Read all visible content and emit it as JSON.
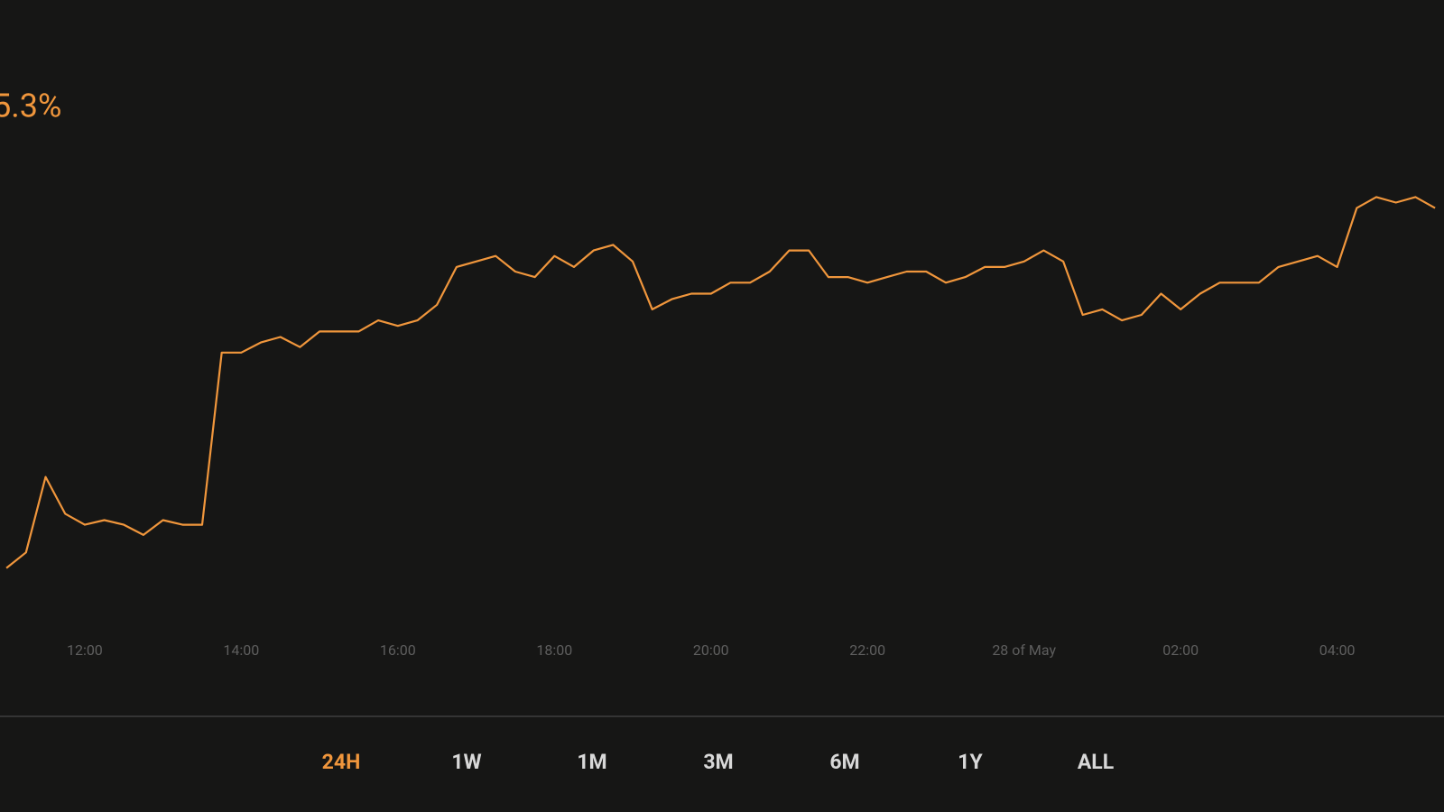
{
  "chart_data": {
    "type": "line",
    "annotation": "5.3%",
    "categories": [
      null,
      null,
      null,
      null,
      "12:00",
      null,
      null,
      null,
      null,
      null,
      null,
      null,
      "14:00",
      null,
      null,
      null,
      null,
      null,
      null,
      null,
      "16:00",
      null,
      null,
      null,
      null,
      null,
      null,
      null,
      "18:00",
      null,
      null,
      null,
      null,
      null,
      null,
      null,
      "20:00",
      null,
      null,
      null,
      null,
      null,
      null,
      null,
      "22:00",
      null,
      null,
      null,
      null,
      null,
      null,
      null,
      "28 of May",
      null,
      null,
      null,
      null,
      null,
      null,
      null,
      "02:00",
      null,
      null,
      null,
      null,
      null,
      null,
      null,
      "04:00",
      null,
      null,
      null,
      null,
      null
    ],
    "series": [
      {
        "color": "#f0963c",
        "values": [
          83,
          100,
          182,
          142,
          130,
          135,
          130,
          119,
          135,
          130,
          130,
          317,
          317,
          328,
          334,
          323,
          340,
          340,
          340,
          352,
          346,
          352,
          369,
          410,
          416,
          422,
          405,
          399,
          422,
          410,
          428,
          434,
          416,
          364,
          375,
          381,
          381,
          393,
          393,
          405,
          428,
          428,
          399,
          399,
          393,
          399,
          405,
          405,
          393,
          399,
          410,
          410,
          416,
          428,
          416,
          358,
          364,
          352,
          358,
          381,
          364,
          381,
          393,
          393,
          393,
          410,
          416,
          422,
          410,
          474,
          486,
          480,
          486,
          474
        ]
      }
    ],
    "ylim": [
      0,
      700
    ]
  },
  "ranges": {
    "options": [
      "24H",
      "1W",
      "1M",
      "3M",
      "6M",
      "1Y",
      "ALL"
    ],
    "active": 0
  }
}
